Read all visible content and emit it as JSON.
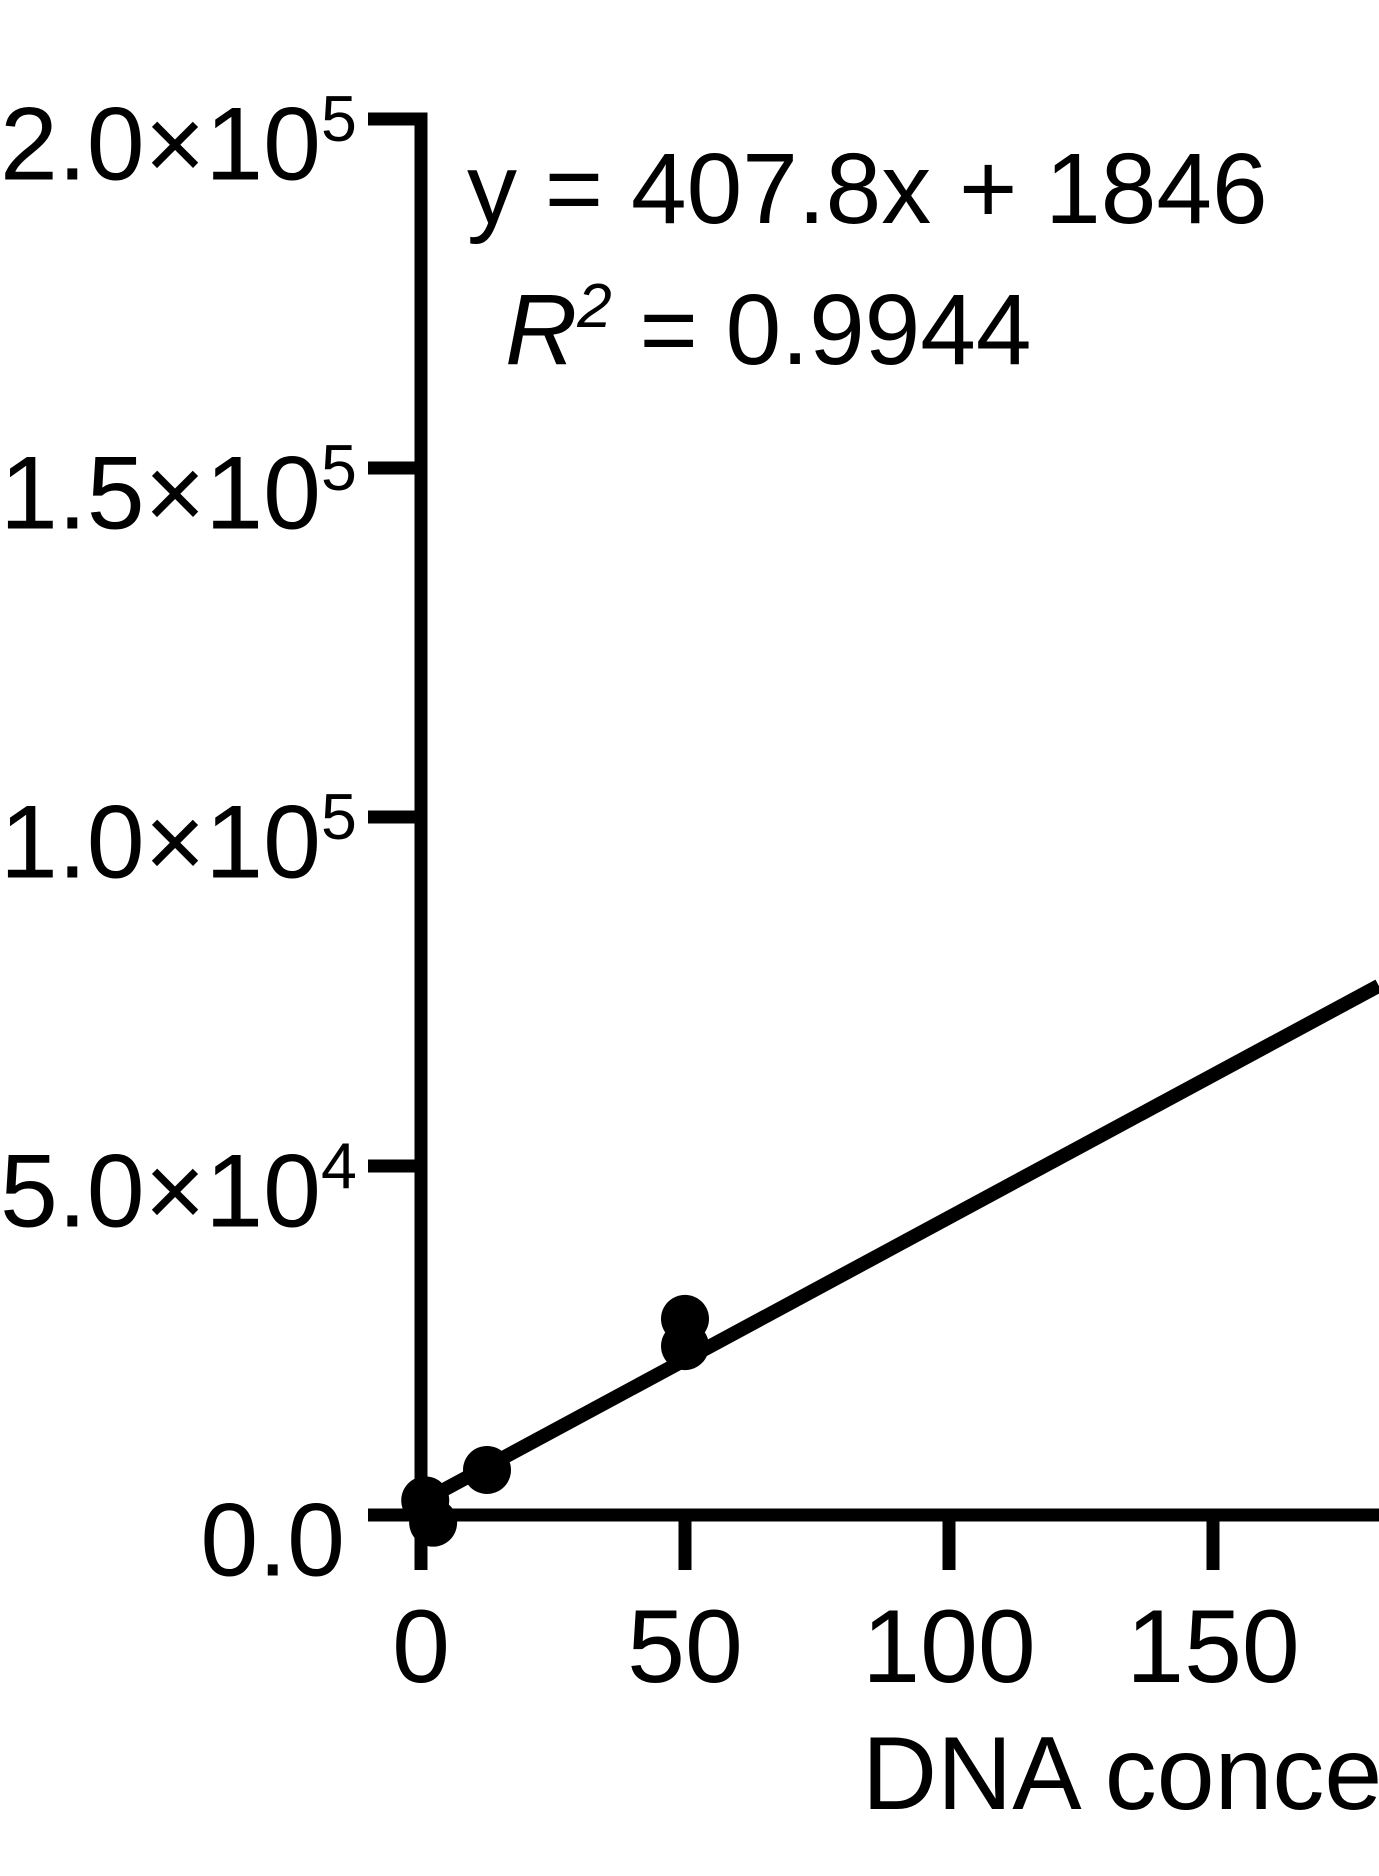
{
  "figure": {
    "background": "#ffffff",
    "ink": "#000000"
  },
  "annotation": {
    "equation": "y = 407.8x + 1846",
    "r_squared_base": "R",
    "r_squared_exp": "2",
    "r_squared_rest": " = 0.9944"
  },
  "chart_data": {
    "type": "scatter",
    "title": "",
    "xlabel": "DNA concentration",
    "ylabel": "",
    "x": [
      0.8,
      2.3,
      12.5,
      50,
      50
    ],
    "y": [
      2100,
      -1100,
      6450,
      28100,
      24200
    ],
    "fit_line": {
      "slope": 407.8,
      "intercept": 1846,
      "r_squared": 0.9944,
      "x_start": 0,
      "x_end": 181.4
    },
    "xlim": [
      0,
      181.4
    ],
    "ylim": [
      0,
      200000
    ],
    "x_ticks": [
      {
        "value": 0,
        "label": "0"
      },
      {
        "value": 50,
        "label": "50"
      },
      {
        "value": 100,
        "label": "100"
      },
      {
        "value": 150,
        "label": "150"
      }
    ],
    "y_ticks": [
      {
        "value": 0,
        "mantissa": "0.0",
        "exp": ""
      },
      {
        "value": 50000,
        "mantissa": "5.0×10",
        "exp": "4"
      },
      {
        "value": 100000,
        "mantissa": "1.0×10",
        "exp": "5"
      },
      {
        "value": 150000,
        "mantissa": "1.5×10",
        "exp": "5"
      },
      {
        "value": 200000,
        "mantissa": "2.0×10",
        "exp": "5"
      }
    ],
    "marker": {
      "shape": "circle",
      "color": "#000000",
      "radius_px": 24
    },
    "grid": false,
    "legend": false
  }
}
